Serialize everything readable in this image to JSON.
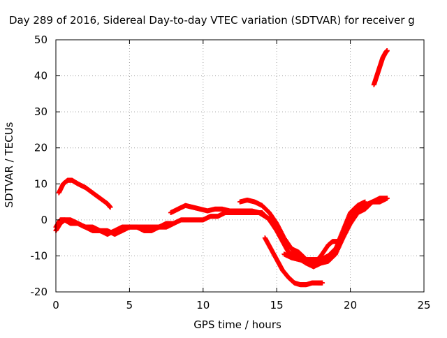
{
  "chart_data": {
    "type": "scatter",
    "title": "Day 289 of 2016, Sidereal Day-to-day VTEC variation (SDTVAR) for receiver g",
    "xlabel": "GPS time / hours",
    "ylabel": "SDTVAR / TECUs",
    "xlim": [
      0,
      25
    ],
    "ylim": [
      -20,
      50
    ],
    "xticks": [
      "0",
      "5",
      "10",
      "15",
      "20",
      "25"
    ],
    "yticks": [
      "-20",
      "-10",
      "0",
      "10",
      "20",
      "30",
      "40",
      "50"
    ],
    "grid": true,
    "legend": "none",
    "marker": "plus",
    "color": "#ff0000",
    "series": [
      {
        "x": [
          0.0,
          0.3,
          0.6,
          1.0,
          1.5,
          2.0,
          2.5,
          3.0,
          3.5,
          4.0,
          4.5,
          5.0,
          5.5,
          6.0,
          6.5,
          7.0,
          7.5,
          8.0,
          8.5,
          9.0,
          9.5,
          10.0,
          10.5,
          11.0,
          11.5,
          12.0,
          12.5,
          13.0,
          13.5,
          14.0,
          14.5,
          15.0,
          15.5,
          16.0,
          16.5,
          17.0,
          17.5,
          18.0,
          18.5,
          19.0,
          19.5,
          20.0,
          20.5,
          21.0,
          21.5,
          22.0,
          22.5
        ],
        "y": [
          -2,
          0,
          0,
          -1,
          -1,
          -2,
          -2,
          -3,
          -3,
          -4,
          -3,
          -2,
          -2,
          -2,
          -2,
          -2,
          -1,
          -1,
          0,
          0,
          0,
          0,
          1,
          1,
          2,
          2,
          2,
          2,
          2,
          2,
          0,
          -3,
          -6,
          -8,
          -9,
          -11,
          -11,
          -11,
          -10,
          -8,
          -4,
          0,
          3,
          4,
          5,
          5,
          6
        ]
      },
      {
        "x": [
          0.0,
          0.3,
          0.6,
          1.0,
          1.5,
          2.0,
          2.5,
          3.0,
          3.5,
          4.0,
          4.5,
          5.0,
          5.5,
          6.0,
          6.5,
          7.0,
          7.5,
          8.0
        ],
        "y": [
          -3,
          -1,
          0,
          0,
          -1,
          -2,
          -3,
          -3,
          -4,
          -3,
          -2,
          -2,
          -2,
          -3,
          -3,
          -2,
          -2,
          -1
        ]
      },
      {
        "x": [
          0.2,
          0.5,
          0.8,
          1.1,
          1.5,
          2.0,
          2.5,
          3.0,
          3.5,
          3.7
        ],
        "y": [
          7.5,
          10,
          11,
          11,
          10,
          9,
          7.5,
          6,
          4.5,
          3.5
        ]
      },
      {
        "x": [
          7.8,
          8.3,
          8.8,
          9.3,
          9.8,
          10.3,
          10.8,
          11.3,
          11.8,
          12.3,
          12.8,
          13.3,
          13.8,
          14.2,
          14.6,
          15.0,
          15.4,
          15.8,
          16.2,
          16.6,
          17.0,
          17.4,
          17.8,
          18.0
        ],
        "y": [
          2,
          3,
          4,
          3.5,
          3,
          2.5,
          3,
          3,
          2.5,
          2.5,
          2.5,
          2.5,
          2,
          1,
          0,
          -3,
          -6,
          -9,
          -10,
          -11,
          -12,
          -12,
          -11,
          -10
        ]
      },
      {
        "x": [
          12.5,
          13.0,
          13.5,
          14.0,
          14.5,
          15.0,
          15.5,
          16.0,
          16.5,
          17.0,
          17.5,
          18.0,
          18.5,
          19.0,
          19.5,
          20.0,
          20.5,
          21.0,
          21.5,
          22.0,
          22.5
        ],
        "y": [
          5,
          5.5,
          5,
          4,
          2,
          -1,
          -5,
          -8,
          -10,
          -12,
          -13,
          -12,
          -11,
          -9,
          -5,
          -1,
          2,
          4,
          5,
          6,
          6
        ]
      },
      {
        "x": [
          14.2,
          14.6,
          15.0,
          15.4,
          15.8,
          16.2,
          16.6,
          17.0,
          17.4,
          17.8,
          18.1
        ],
        "y": [
          -5,
          -8,
          -11,
          -14,
          -16,
          -17.5,
          -18,
          -18,
          -17.5,
          -17.5,
          -17.5
        ]
      },
      {
        "x": [
          15.5,
          16.0,
          16.5,
          17.0,
          17.5,
          18.0,
          18.5,
          19.0,
          19.5,
          20.0,
          20.5,
          21.0,
          21.5,
          22.0
        ],
        "y": [
          -9.5,
          -10.5,
          -11,
          -11.5,
          -12.5,
          -12,
          -11.5,
          -9.5,
          -5,
          -1,
          2,
          3,
          5,
          5.5
        ]
      },
      {
        "x": [
          17.5,
          18.0,
          18.5,
          18.8,
          19.2,
          19.6,
          20.0,
          20.5,
          21.0
        ],
        "y": [
          -13,
          -10,
          -7,
          -6,
          -6,
          -2,
          2,
          4,
          5
        ]
      },
      {
        "x": [
          21.6,
          21.8,
          22.0,
          22.2,
          22.4,
          22.5
        ],
        "y": [
          37.5,
          40,
          42.5,
          45,
          46.5,
          47
        ]
      }
    ]
  }
}
